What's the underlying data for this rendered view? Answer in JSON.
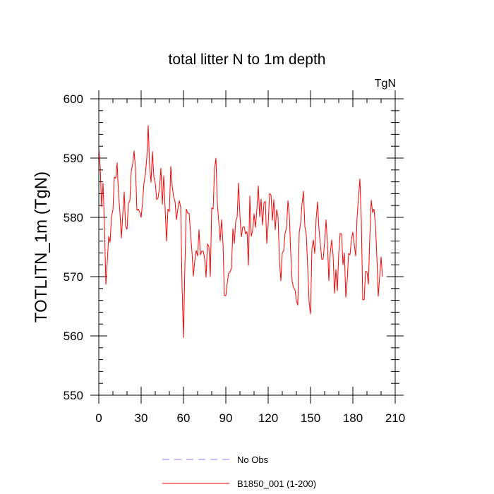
{
  "chart_data": {
    "type": "line",
    "title": "total litter N to 1m depth",
    "units_label": "TgN",
    "ylabel": "TOTLITN_1m  (TgN)",
    "xlabel": "",
    "xlim": [
      0,
      210
    ],
    "ylim": [
      550,
      600
    ],
    "x_ticks": [
      0,
      30,
      60,
      90,
      120,
      150,
      180,
      210
    ],
    "y_ticks": [
      550,
      560,
      570,
      580,
      590,
      600
    ],
    "x_minor_step": 10,
    "y_minor_step": 2,
    "grid": false,
    "legend_position": "bottom-center",
    "legend": [
      {
        "name": "No Obs",
        "color": "#8080ff",
        "dash": "dashed"
      },
      {
        "name": "B1850_001 (1-200)",
        "color": "#ff0000",
        "dash": "solid"
      }
    ],
    "series": [
      {
        "name": "B1850_001 (1-200)",
        "color": "#ff0000",
        "x_start": 0,
        "x_step": 1,
        "values": [
          591.5,
          588.5,
          581.8,
          585.8,
          578.8,
          568.7,
          572.5,
          576.8,
          575.8,
          580.2,
          581.2,
          586.8,
          586.6,
          589.2,
          583.8,
          580.8,
          576.5,
          580.5,
          584.3,
          578.5,
          578.0,
          582.4,
          582.8,
          587.8,
          589.0,
          591.2,
          588.3,
          581.2,
          581.4,
          580.9,
          580.0,
          582.5,
          585.8,
          587.3,
          590.0,
          595.5,
          588.6,
          585.9,
          591.1,
          586.8,
          585.8,
          583.0,
          583.3,
          585.0,
          588.3,
          582.2,
          587.0,
          581.4,
          576.0,
          581.4,
          581.0,
          588.6,
          585.2,
          583.5,
          582.7,
          579.6,
          581.4,
          582.8,
          581.8,
          568.3,
          559.7,
          572.0,
          581.4,
          580.7,
          580.7,
          577.3,
          574.2,
          570.1,
          572.7,
          574.4,
          573.5,
          577.9,
          573.7,
          574.3,
          574.3,
          573.0,
          569.9,
          575.5,
          575.1,
          570.0,
          581.6,
          581.4,
          588.2,
          590.0,
          582.3,
          579.3,
          576.0,
          579.6,
          575.5,
          566.8,
          566.8,
          568.9,
          570.6,
          570.8,
          571.4,
          578.1,
          575.6,
          579.3,
          580.0,
          585.8,
          580.2,
          576.7,
          578.4,
          578.4,
          577.2,
          577.6,
          571.9,
          583.6,
          576.8,
          577.8,
          580.6,
          578.3,
          581.4,
          585.3,
          580.1,
          583.1,
          578.7,
          582.4,
          582.7,
          575.6,
          578.8,
          584.0,
          583.8,
          579.5,
          583.0,
          577.9,
          581.3,
          580.1,
          572.7,
          569.3,
          574.0,
          574.4,
          577.3,
          578.2,
          582.8,
          580.4,
          573.9,
          569.2,
          568.1,
          567.8,
          566.0,
          565.2,
          577.5,
          579.0,
          582.3,
          584.4,
          578.4,
          577.0,
          571.7,
          565.7,
          563.7,
          574.8,
          576.2,
          573.9,
          579.8,
          582.6,
          578.0,
          575.4,
          572.9,
          573.0,
          575.9,
          579.6,
          575.6,
          569.3,
          574.0,
          576.2,
          573.6,
          567.2,
          571.2,
          567.6,
          573.9,
          577.3,
          577.2,
          572.0,
          574.0,
          566.5,
          569.4,
          573.9,
          573.7,
          576.3,
          577.5,
          575.4,
          573.5,
          580.0,
          583.4,
          586.5,
          579.5,
          566.1,
          566.1,
          570.9,
          570.8,
          568.7,
          576.5,
          582.9,
          580.8,
          581.4,
          578.7,
          573.4,
          566.7,
          570.1,
          573.3,
          570.0
        ]
      }
    ]
  }
}
